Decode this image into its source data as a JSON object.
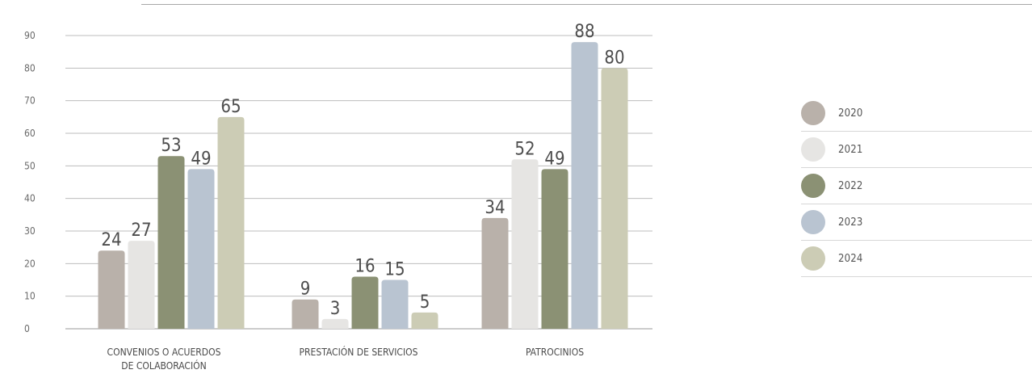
{
  "chart_data": {
    "type": "bar",
    "title": "",
    "xlabel": "",
    "ylabel": "",
    "ylim": [
      0,
      90
    ],
    "yticks": [
      0,
      10,
      20,
      30,
      40,
      50,
      60,
      70,
      80,
      90
    ],
    "grid": true,
    "legend_position": "right",
    "categories": [
      "CONVENIOS O ACUERDOS DE COLABORACIÓN",
      "PRESTACIÓN DE SERVICIOS",
      "PATROCINIOS"
    ],
    "series": [
      {
        "name": "2020",
        "color": "#b9b1aa",
        "values": [
          24,
          9,
          34
        ]
      },
      {
        "name": "2021",
        "color": "#e6e5e3",
        "values": [
          27,
          3,
          52
        ]
      },
      {
        "name": "2022",
        "color": "#8b9174",
        "values": [
          53,
          16,
          49
        ]
      },
      {
        "name": "2023",
        "color": "#b9c4d1",
        "values": [
          49,
          15,
          88
        ]
      },
      {
        "name": "2024",
        "color": "#ccccb5",
        "values": [
          65,
          5,
          80
        ]
      }
    ]
  },
  "category_labels": {
    "cat0_line1": "CONVENIOS O ACUERDOS",
    "cat0_line2": "DE COLABORACIÓN",
    "cat1_line1": "PRESTACIÓN DE SERVICIOS",
    "cat2_line1": "PATROCINIOS"
  },
  "legend": {
    "items": [
      {
        "label": "2020",
        "color": "#b9b1aa"
      },
      {
        "label": "2021",
        "color": "#e6e5e3"
      },
      {
        "label": "2022",
        "color": "#8b9174"
      },
      {
        "label": "2023",
        "color": "#b9c4d1"
      },
      {
        "label": "2024",
        "color": "#ccccb5"
      }
    ]
  }
}
